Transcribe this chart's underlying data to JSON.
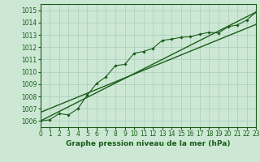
{
  "title": "Graphe pression niveau de la mer (hPa)",
  "bg_color": "#cce8d4",
  "grid_color": "#aaccbb",
  "line_color": "#1a5c1a",
  "xlim": [
    0,
    23
  ],
  "ylim": [
    1005.5,
    1015.5
  ],
  "yticks": [
    1006,
    1007,
    1008,
    1009,
    1010,
    1011,
    1012,
    1013,
    1014,
    1015
  ],
  "xticks": [
    0,
    1,
    2,
    3,
    4,
    5,
    6,
    7,
    8,
    9,
    10,
    11,
    12,
    13,
    14,
    15,
    16,
    17,
    18,
    19,
    20,
    21,
    22,
    23
  ],
  "series_x": [
    0,
    1,
    2,
    3,
    4,
    5,
    6,
    7,
    8,
    9,
    10,
    11,
    12,
    13,
    14,
    15,
    16,
    17,
    18,
    19,
    20,
    21,
    22,
    23
  ],
  "series_y": [
    1006.0,
    1006.1,
    1006.6,
    1006.5,
    1007.0,
    1008.1,
    1009.05,
    1009.6,
    1010.5,
    1010.6,
    1011.5,
    1011.65,
    1011.9,
    1012.55,
    1012.65,
    1012.8,
    1012.85,
    1013.05,
    1013.2,
    1013.15,
    1013.65,
    1013.8,
    1014.2,
    1014.85
  ],
  "refline1_x": [
    0,
    23
  ],
  "refline1_y": [
    1006.0,
    1014.85
  ],
  "refline2_x": [
    0,
    23
  ],
  "refline2_y": [
    1006.7,
    1013.85
  ]
}
